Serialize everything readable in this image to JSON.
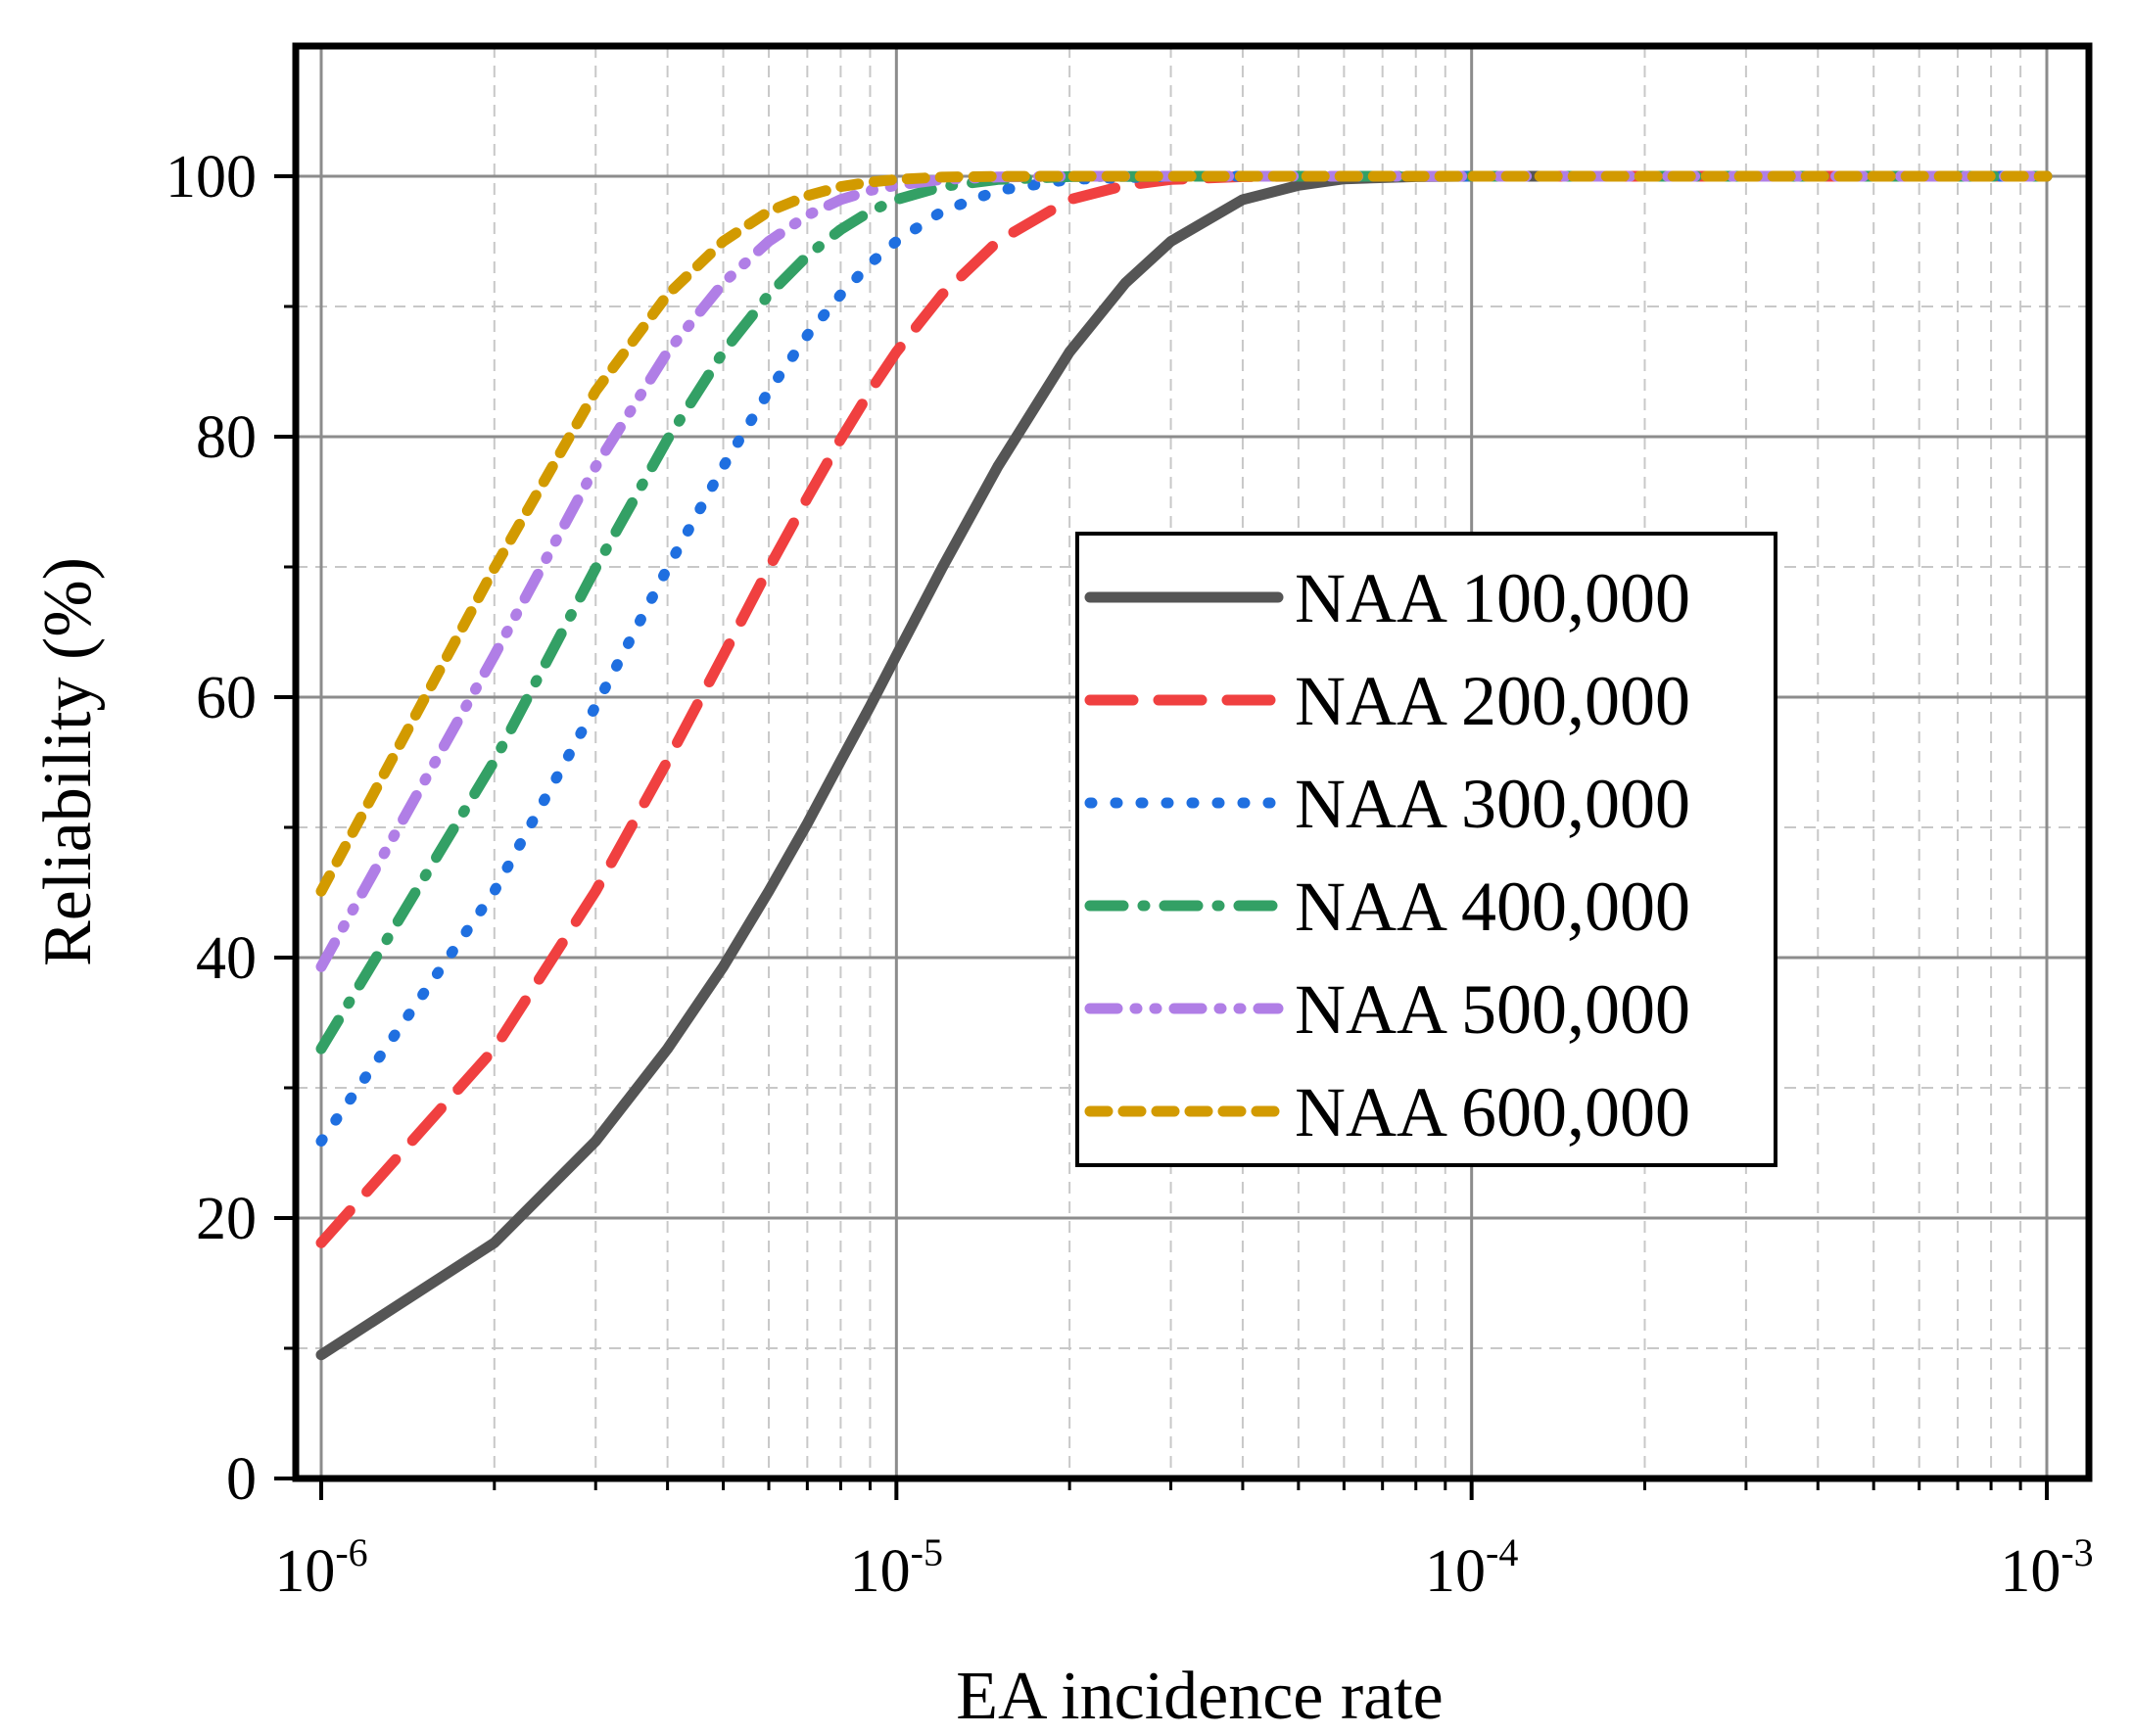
{
  "chart_data": {
    "type": "line",
    "title": "",
    "xlabel": "EA incidence rate",
    "ylabel": "Reliability (%)",
    "xscale": "log",
    "xlim": [
      1e-06,
      0.001
    ],
    "ylim": [
      0,
      110
    ],
    "grid": true,
    "legend_position": "center-right",
    "xticks": [
      {
        "value": 1e-06,
        "base": "10",
        "exp": "-6"
      },
      {
        "value": 1e-05,
        "base": "10",
        "exp": "-5"
      },
      {
        "value": 0.0001,
        "base": "10",
        "exp": "-4"
      },
      {
        "value": 0.001,
        "base": "10",
        "exp": "-3"
      }
    ],
    "yticks": [
      {
        "value": 0,
        "label": "0"
      },
      {
        "value": 20,
        "label": "20"
      },
      {
        "value": 40,
        "label": "40"
      },
      {
        "value": 60,
        "label": "60"
      },
      {
        "value": 80,
        "label": "80"
      },
      {
        "value": 100,
        "label": "100"
      }
    ],
    "series": [
      {
        "name": "NAA 100,000",
        "color": "#555555",
        "style": "solid",
        "points": [
          [
            1e-06,
            9.5
          ],
          [
            2e-06,
            18.1
          ],
          [
            3e-06,
            25.9
          ],
          [
            4e-06,
            33.0
          ],
          [
            5e-06,
            39.3
          ],
          [
            6e-06,
            45.1
          ],
          [
            7e-06,
            50.3
          ],
          [
            8e-06,
            55.1
          ],
          [
            9e-06,
            59.3
          ],
          [
            1e-05,
            63.2
          ],
          [
            1.2e-05,
            69.9
          ],
          [
            1.5e-05,
            77.7
          ],
          [
            2e-05,
            86.5
          ],
          [
            2.5e-05,
            91.8
          ],
          [
            3e-05,
            95.0
          ],
          [
            4e-05,
            98.2
          ],
          [
            5e-05,
            99.3
          ],
          [
            6e-05,
            99.8
          ],
          [
            8e-05,
            99.97
          ],
          [
            0.0001,
            100
          ],
          [
            0.001,
            100
          ]
        ]
      },
      {
        "name": "NAA 200,000",
        "color": "#f04040",
        "style": "dash",
        "points": [
          [
            1e-06,
            18.1
          ],
          [
            2e-06,
            33.0
          ],
          [
            3e-06,
            45.1
          ],
          [
            4e-06,
            55.1
          ],
          [
            5e-06,
            63.2
          ],
          [
            6e-06,
            69.9
          ],
          [
            7e-06,
            75.3
          ],
          [
            8e-06,
            79.8
          ],
          [
            9e-06,
            83.5
          ],
          [
            1e-05,
            86.5
          ],
          [
            1.2e-05,
            90.9
          ],
          [
            1.5e-05,
            95.0
          ],
          [
            2e-05,
            98.2
          ],
          [
            2.5e-05,
            99.3
          ],
          [
            3e-05,
            99.75
          ],
          [
            4e-05,
            99.97
          ],
          [
            5e-05,
            100
          ],
          [
            0.001,
            100
          ]
        ]
      },
      {
        "name": "NAA 300,000",
        "color": "#1f6fe0",
        "style": "dot",
        "points": [
          [
            1e-06,
            25.9
          ],
          [
            2e-06,
            45.1
          ],
          [
            3e-06,
            59.3
          ],
          [
            4e-06,
            69.9
          ],
          [
            5e-06,
            77.7
          ],
          [
            6e-06,
            83.5
          ],
          [
            7e-06,
            87.8
          ],
          [
            8e-06,
            90.9
          ],
          [
            9e-06,
            93.3
          ],
          [
            1e-05,
            95.0
          ],
          [
            1.2e-05,
            97.3
          ],
          [
            1.5e-05,
            98.9
          ],
          [
            2e-05,
            99.75
          ],
          [
            3e-05,
            99.99
          ],
          [
            4e-05,
            100
          ],
          [
            0.001,
            100
          ]
        ]
      },
      {
        "name": "NAA 400,000",
        "color": "#33a065",
        "style": "dashdot",
        "points": [
          [
            1e-06,
            33.0
          ],
          [
            2e-06,
            55.1
          ],
          [
            3e-06,
            69.9
          ],
          [
            4e-06,
            79.8
          ],
          [
            5e-06,
            86.5
          ],
          [
            6e-06,
            90.9
          ],
          [
            7e-06,
            93.9
          ],
          [
            8e-06,
            95.9
          ],
          [
            9e-06,
            97.3
          ],
          [
            1e-05,
            98.2
          ],
          [
            1.2e-05,
            99.2
          ],
          [
            1.5e-05,
            99.75
          ],
          [
            2e-05,
            99.97
          ],
          [
            3e-05,
            100
          ],
          [
            0.001,
            100
          ]
        ]
      },
      {
        "name": "NAA 500,000",
        "color": "#b07ee6",
        "style": "dashdotdot",
        "points": [
          [
            1e-06,
            39.3
          ],
          [
            2e-06,
            63.2
          ],
          [
            3e-06,
            77.7
          ],
          [
            4e-06,
            86.5
          ],
          [
            5e-06,
            91.8
          ],
          [
            6e-06,
            95.0
          ],
          [
            7e-06,
            97.0
          ],
          [
            8e-06,
            98.2
          ],
          [
            9e-06,
            98.9
          ],
          [
            1e-05,
            99.3
          ],
          [
            1.2e-05,
            99.75
          ],
          [
            1.5e-05,
            99.94
          ],
          [
            2e-05,
            100
          ],
          [
            0.001,
            100
          ]
        ]
      },
      {
        "name": "NAA 600,000",
        "color": "#d29a00",
        "style": "shortdash",
        "points": [
          [
            1e-06,
            45.1
          ],
          [
            2e-06,
            69.9
          ],
          [
            3e-06,
            83.5
          ],
          [
            4e-06,
            90.9
          ],
          [
            5e-06,
            95.0
          ],
          [
            6e-06,
            97.3
          ],
          [
            7e-06,
            98.5
          ],
          [
            8e-06,
            99.2
          ],
          [
            9e-06,
            99.55
          ],
          [
            1e-05,
            99.75
          ],
          [
            1.2e-05,
            99.93
          ],
          [
            1.5e-05,
            99.99
          ],
          [
            2e-05,
            100
          ],
          [
            0.001,
            100
          ]
        ]
      }
    ]
  }
}
